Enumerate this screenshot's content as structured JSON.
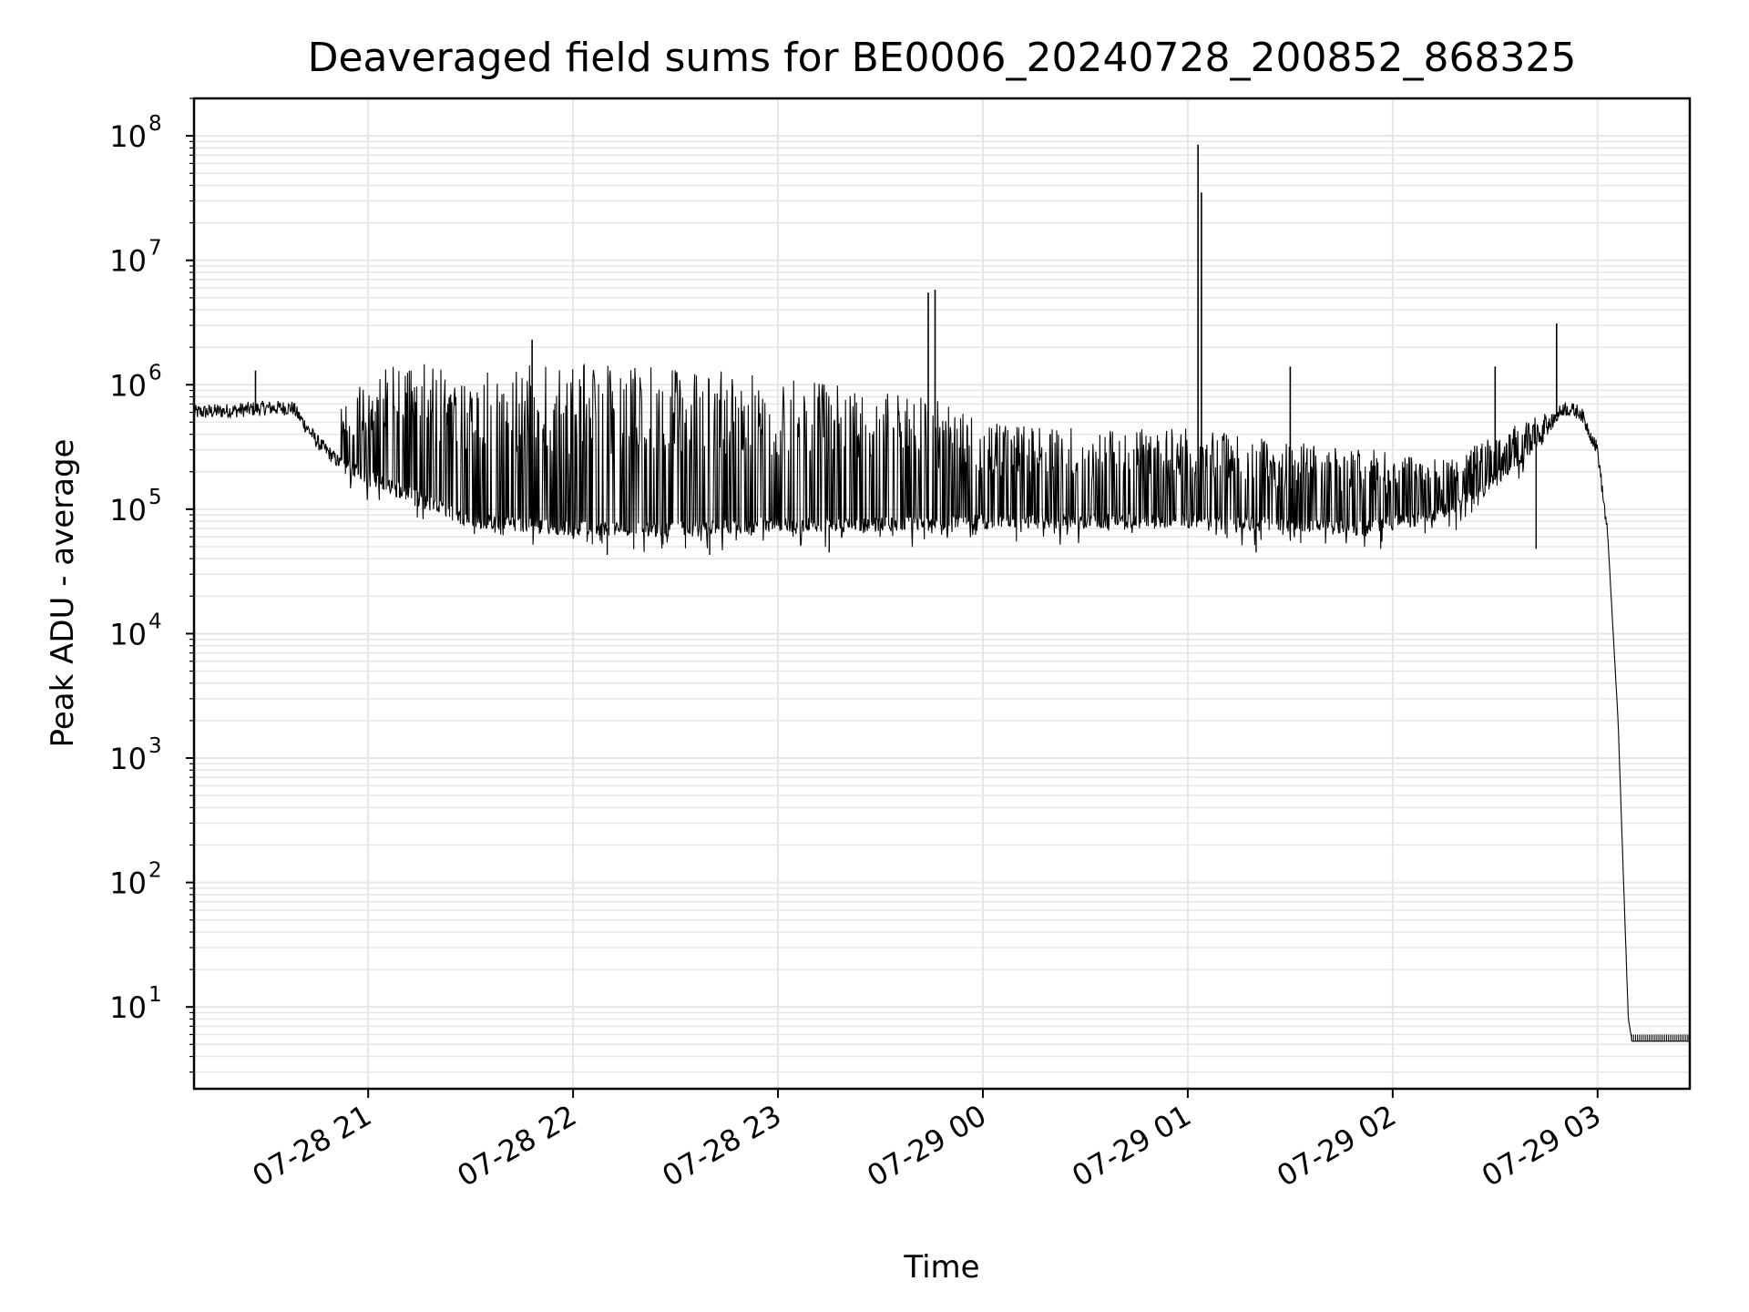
{
  "chart_data": {
    "type": "line",
    "title": "Deaveraged field sums for BE0006_20240728_200852_868325",
    "xlabel": "Time",
    "ylabel": "Peak ADU - average",
    "y_scale": "log",
    "ylim": [
      2.2,
      200000000
    ],
    "xlim": [
      "2024-07-28 20:09",
      "2024-07-29 03:27"
    ],
    "x_ticks": [
      "07-28 21",
      "07-28 22",
      "07-28 23",
      "07-29 00",
      "07-29 01",
      "07-29 02",
      "07-29 03"
    ],
    "y_ticks": [
      {
        "base": "10",
        "exp": "1"
      },
      {
        "base": "10",
        "exp": "2"
      },
      {
        "base": "10",
        "exp": "3"
      },
      {
        "base": "10",
        "exp": "4"
      },
      {
        "base": "10",
        "exp": "5"
      },
      {
        "base": "10",
        "exp": "6"
      },
      {
        "base": "10",
        "exp": "7"
      },
      {
        "base": "10",
        "exp": "8"
      }
    ],
    "grid": true,
    "line_color": "#000000",
    "grid_color": "#e6e6e6",
    "series": [
      {
        "baseline": {
          "x": [
            "2024-07-28 20:09",
            "2024-07-28 20:20",
            "2024-07-28 20:30",
            "2024-07-28 20:38",
            "2024-07-28 20:45",
            "2024-07-28 20:52",
            "2024-07-28 21:00",
            "2024-07-28 21:15",
            "2024-07-28 21:30",
            "2024-07-28 22:00",
            "2024-07-28 22:30",
            "2024-07-28 23:00",
            "2024-07-28 23:30",
            "2024-07-29 00:00",
            "2024-07-29 00:30",
            "2024-07-29 01:00",
            "2024-07-29 01:30",
            "2024-07-29 01:50",
            "2024-07-29 02:10",
            "2024-07-29 02:25",
            "2024-07-29 02:40",
            "2024-07-29 02:50",
            "2024-07-29 02:55",
            "2024-07-29 03:00",
            "2024-07-29 03:03",
            "2024-07-29 03:06",
            "2024-07-29 03:08",
            "2024-07-29 03:09",
            "2024-07-29 03:10",
            "2024-07-29 03:27"
          ],
          "y": [
            600000,
            620000,
            650000,
            650000,
            350000,
            230000,
            180000,
            120000,
            80000,
            70000,
            70000,
            75000,
            75000,
            80000,
            80000,
            80000,
            75000,
            70000,
            85000,
            130000,
            300000,
            650000,
            600000,
            300000,
            60000,
            2000,
            50,
            8,
            5.5,
            5.5
          ]
        },
        "envelope_high": {
          "x": [
            "2024-07-28 20:52",
            "2024-07-28 21:05",
            "2024-07-28 21:20",
            "2024-07-28 21:50",
            "2024-07-28 22:20",
            "2024-07-28 22:50",
            "2024-07-28 23:20",
            "2024-07-28 23:45",
            "2024-07-29 00:00",
            "2024-07-29 00:30",
            "2024-07-29 01:00",
            "2024-07-29 01:30",
            "2024-07-29 01:55",
            "2024-07-29 02:15",
            "2024-07-29 02:30",
            "2024-07-29 02:45"
          ],
          "y": [
            700000,
            1500000,
            1500000,
            1500000,
            1400000,
            1300000,
            1000000,
            800000,
            500000,
            450000,
            450000,
            350000,
            300000,
            250000,
            400000,
            600000
          ]
        },
        "spikes": {
          "x": [
            "2024-07-28 20:27",
            "2024-07-28 21:48",
            "2024-07-28 23:44",
            "2024-07-28 23:46",
            "2024-07-29 01:03",
            "2024-07-29 01:04",
            "2024-07-29 01:30",
            "2024-07-29 02:30",
            "2024-07-29 02:48"
          ],
          "y": [
            1300000,
            2300000,
            5500000,
            5800000,
            85000000,
            35000000,
            1400000,
            1400000,
            3100000
          ]
        },
        "dips": {
          "x": [
            "2024-07-28 22:10",
            "2024-07-28 22:40",
            "2024-07-28 23:15",
            "2024-07-29 01:20",
            "2024-07-29 02:42"
          ],
          "y": [
            43000,
            43000,
            45000,
            45000,
            48000
          ]
        }
      }
    ]
  }
}
